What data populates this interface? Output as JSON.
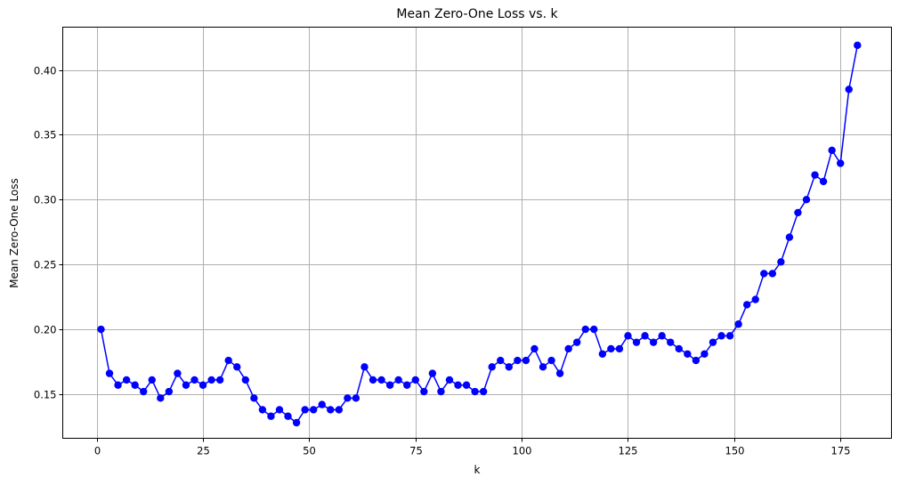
{
  "chart_data": {
    "type": "line",
    "title": "Mean Zero-One Loss vs. k",
    "xlabel": "k",
    "ylabel": "Mean Zero-One Loss",
    "xlim": [
      -8,
      187
    ],
    "ylim": [
      0.116,
      0.433
    ],
    "xticks": [
      0,
      25,
      50,
      75,
      100,
      125,
      150,
      175
    ],
    "yticks": [
      0.15,
      0.2,
      0.25,
      0.3,
      0.35,
      0.4
    ],
    "ytick_labels": [
      "0.15",
      "0.20",
      "0.25",
      "0.30",
      "0.35",
      "0.40"
    ],
    "grid": true,
    "colors": {
      "series": "#0000ff"
    },
    "series": [
      {
        "marker": "circle",
        "x": [
          1,
          3,
          5,
          7,
          9,
          11,
          13,
          15,
          17,
          19,
          21,
          23,
          25,
          27,
          29,
          31,
          33,
          35,
          37,
          39,
          41,
          43,
          45,
          47,
          49,
          51,
          53,
          55,
          57,
          59,
          61,
          63,
          65,
          67,
          69,
          71,
          73,
          75,
          77,
          79,
          81,
          83,
          85,
          87,
          89,
          91,
          93,
          95,
          97,
          99,
          101,
          103,
          105,
          107,
          109,
          111,
          113,
          115,
          117,
          119,
          121,
          123,
          125,
          127,
          129,
          131,
          133,
          135,
          137,
          139,
          141,
          143,
          145,
          147,
          149,
          151,
          153,
          155,
          157,
          159,
          161,
          163,
          165,
          167,
          169,
          171,
          173,
          175,
          177,
          179
        ],
        "y": [
          0.2,
          0.166,
          0.157,
          0.161,
          0.157,
          0.152,
          0.161,
          0.147,
          0.152,
          0.166,
          0.157,
          0.161,
          0.157,
          0.161,
          0.161,
          0.176,
          0.171,
          0.161,
          0.147,
          0.138,
          0.133,
          0.138,
          0.133,
          0.128,
          0.138,
          0.138,
          0.142,
          0.138,
          0.138,
          0.147,
          0.147,
          0.171,
          0.161,
          0.161,
          0.157,
          0.161,
          0.157,
          0.161,
          0.152,
          0.166,
          0.152,
          0.161,
          0.157,
          0.157,
          0.152,
          0.152,
          0.171,
          0.176,
          0.171,
          0.176,
          0.176,
          0.185,
          0.171,
          0.176,
          0.166,
          0.185,
          0.19,
          0.2,
          0.2,
          0.181,
          0.185,
          0.185,
          0.195,
          0.19,
          0.195,
          0.19,
          0.195,
          0.19,
          0.185,
          0.181,
          0.176,
          0.181,
          0.19,
          0.195,
          0.195,
          0.204,
          0.219,
          0.223,
          0.243,
          0.243,
          0.252,
          0.271,
          0.29,
          0.3,
          0.319,
          0.314,
          0.338,
          0.328,
          0.385,
          0.419
        ]
      }
    ]
  }
}
